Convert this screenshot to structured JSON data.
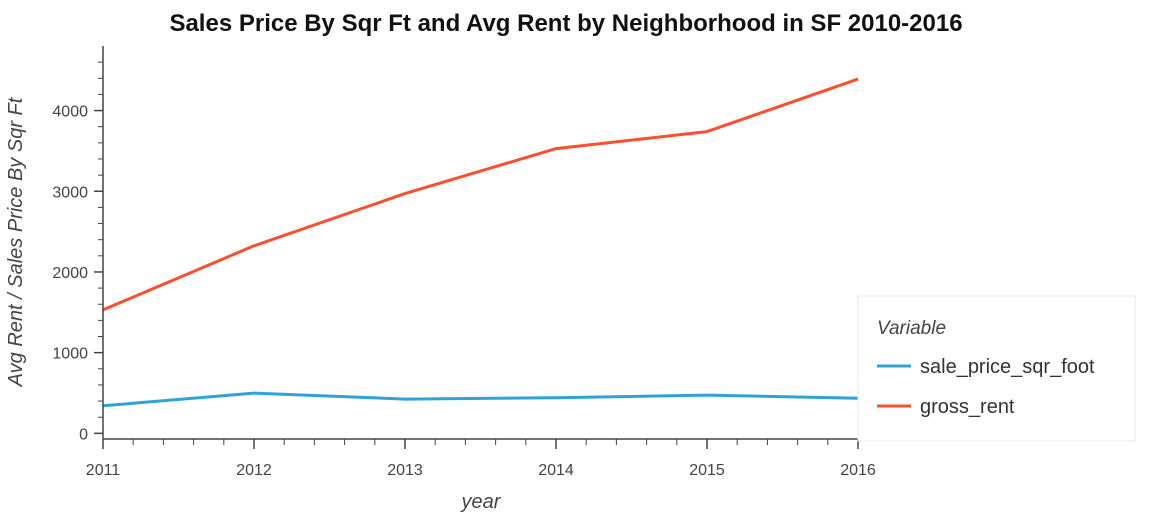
{
  "chart_data": {
    "type": "line",
    "title": "Sales Price By Sqr Ft and Avg Rent by Neighborhood in SF 2010-2016",
    "xlabel": "year",
    "ylabel": "Avg Rent / Sales Price By Sqr Ft",
    "x": [
      2011,
      2012,
      2013,
      2014,
      2015,
      2016
    ],
    "xlim": [
      2011,
      2016
    ],
    "ylim": [
      -70,
      4800
    ],
    "x_ticks": [
      "2011",
      "2012",
      "2013",
      "2014",
      "2015",
      "2016"
    ],
    "y_ticks": [
      "0",
      "1000",
      "2000",
      "3000",
      "4000"
    ],
    "y_tick_values": [
      0,
      1000,
      2000,
      3000,
      4000
    ],
    "grid": false,
    "legend_title": "Variable",
    "legend_position": "right",
    "series": [
      {
        "name": "sale_price_sqr_foot",
        "color": "#30a2da",
        "values": [
          341.9,
          499.0,
          424.8,
          442.1,
          474.6,
          435.4
        ]
      },
      {
        "name": "gross_rent",
        "color": "#fc4f30",
        "values": [
          1530,
          2324,
          2971,
          3529,
          3739,
          4390
        ]
      }
    ]
  }
}
